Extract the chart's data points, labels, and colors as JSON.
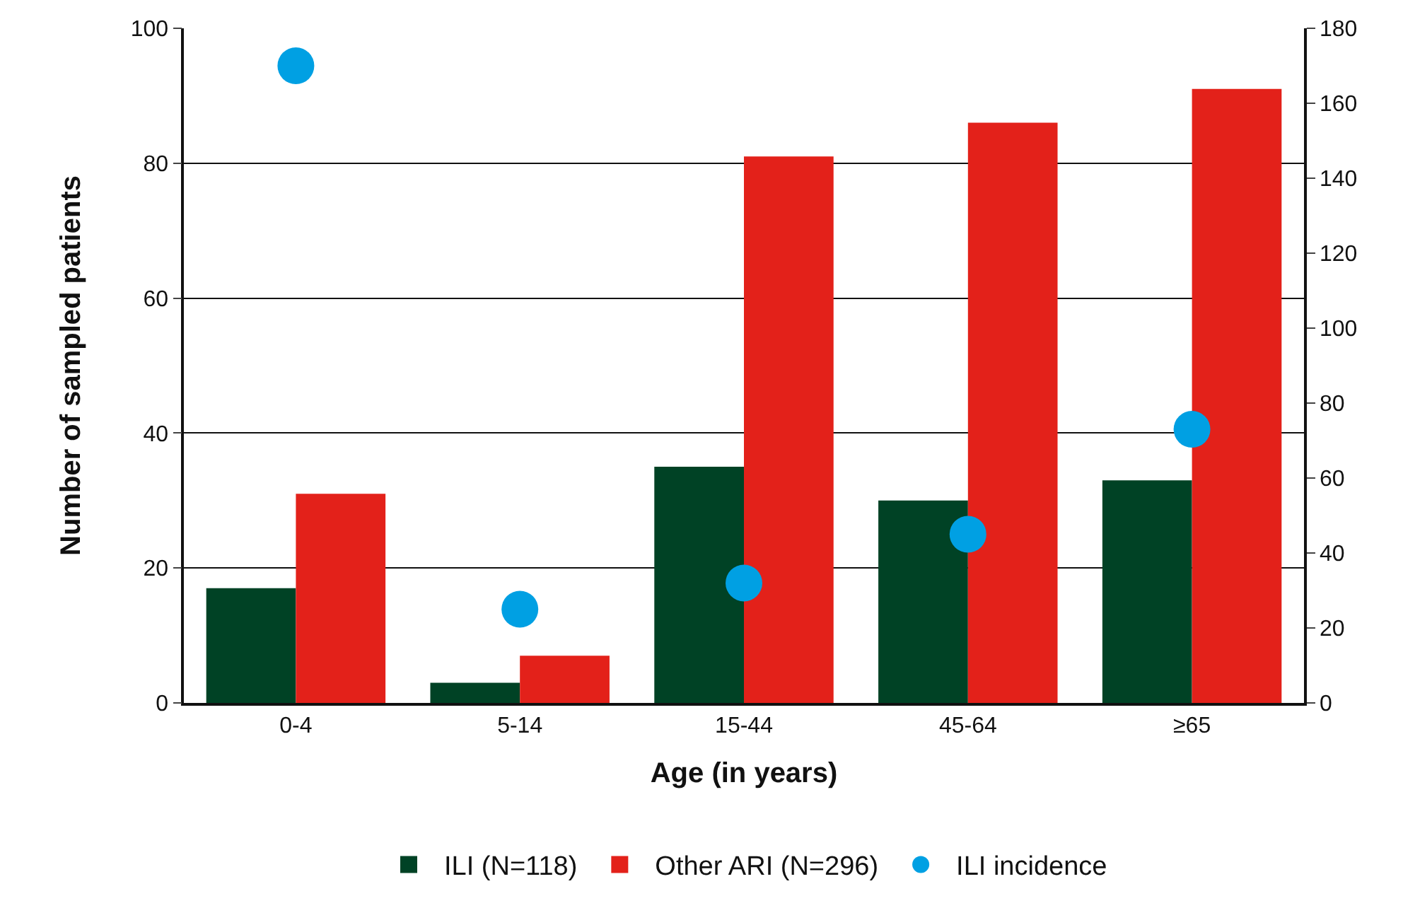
{
  "chart_data": {
    "type": "bar",
    "xlabel": "Age (in years)",
    "ylabel": "Number of sampled patients",
    "categories": [
      "0-4",
      "5-14",
      "15-44",
      "45-64",
      "≥65"
    ],
    "series": [
      {
        "name": "ILI (N=118)",
        "color": "#004225",
        "values": [
          17,
          3,
          35,
          30,
          33
        ]
      },
      {
        "name": "Other ARI (N=296)",
        "color": "#e3211a",
        "values": [
          31,
          7,
          81,
          86,
          91
        ]
      },
      {
        "name": "ILI incidence",
        "type": "scatter",
        "axis": "y2",
        "color": "#00a0e3",
        "values": [
          170,
          25,
          32,
          45,
          73
        ]
      }
    ],
    "ylim": [
      0,
      100
    ],
    "yticks": [
      0,
      20,
      40,
      60,
      80,
      100
    ],
    "y2lim": [
      0,
      180
    ],
    "y2ticks": [
      0,
      20,
      40,
      60,
      80,
      100,
      120,
      140,
      160,
      180
    ],
    "grid": "y",
    "legend": "bottom",
    "marker": "circle"
  }
}
